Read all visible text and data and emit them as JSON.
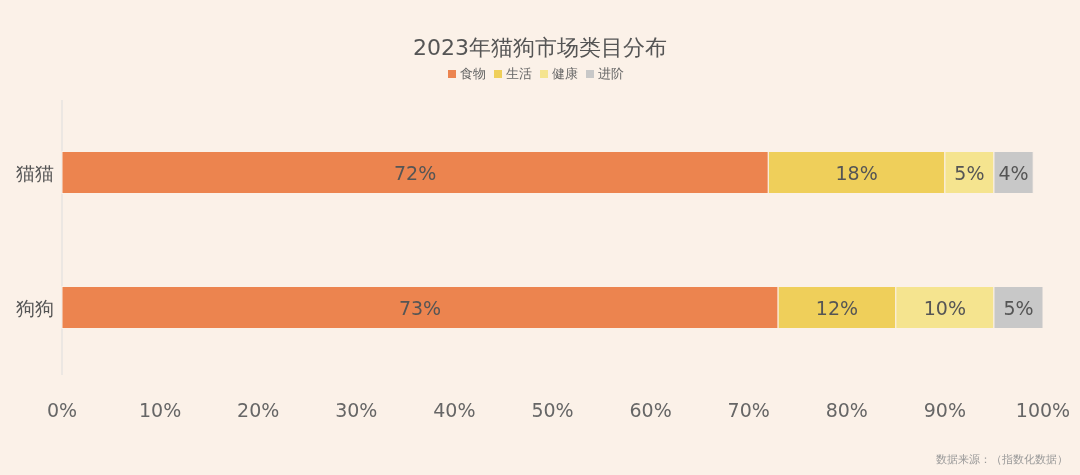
{
  "chart_data": {
    "type": "bar",
    "orientation": "horizontal",
    "stacked": true,
    "title": "2023年猫狗市场类目分布",
    "categories": [
      "猫猫",
      "狗狗"
    ],
    "series": [
      {
        "name": "食物",
        "color": "#ec844f",
        "values": [
          72,
          73
        ],
        "value_labels": [
          "72%",
          "73%"
        ]
      },
      {
        "name": "生活",
        "color": "#efcf5a",
        "values": [
          18,
          12
        ],
        "value_labels": [
          "18%",
          "12%"
        ]
      },
      {
        "name": "健康",
        "color": "#f5e48f",
        "values": [
          5,
          10
        ],
        "value_labels": [
          "5%",
          "10%"
        ]
      },
      {
        "name": "进阶",
        "color": "#c8c8c8",
        "values": [
          4,
          5
        ],
        "value_labels": [
          "4%",
          "5%"
        ]
      }
    ],
    "xlim": [
      0,
      100
    ],
    "xticks": [
      {
        "value": 0,
        "label": "0%"
      },
      {
        "value": 10,
        "label": "10%"
      },
      {
        "value": 20,
        "label": "20%"
      },
      {
        "value": 30,
        "label": "30%"
      },
      {
        "value": 40,
        "label": "40%"
      },
      {
        "value": 50,
        "label": "50%"
      },
      {
        "value": 60,
        "label": "60%"
      },
      {
        "value": 70,
        "label": "70%"
      },
      {
        "value": 80,
        "label": "80%"
      },
      {
        "value": 90,
        "label": "90%"
      },
      {
        "value": 100,
        "label": "100%"
      }
    ],
    "legend": "top",
    "annotations": [
      "数据来源：（指数化数据）"
    ]
  }
}
